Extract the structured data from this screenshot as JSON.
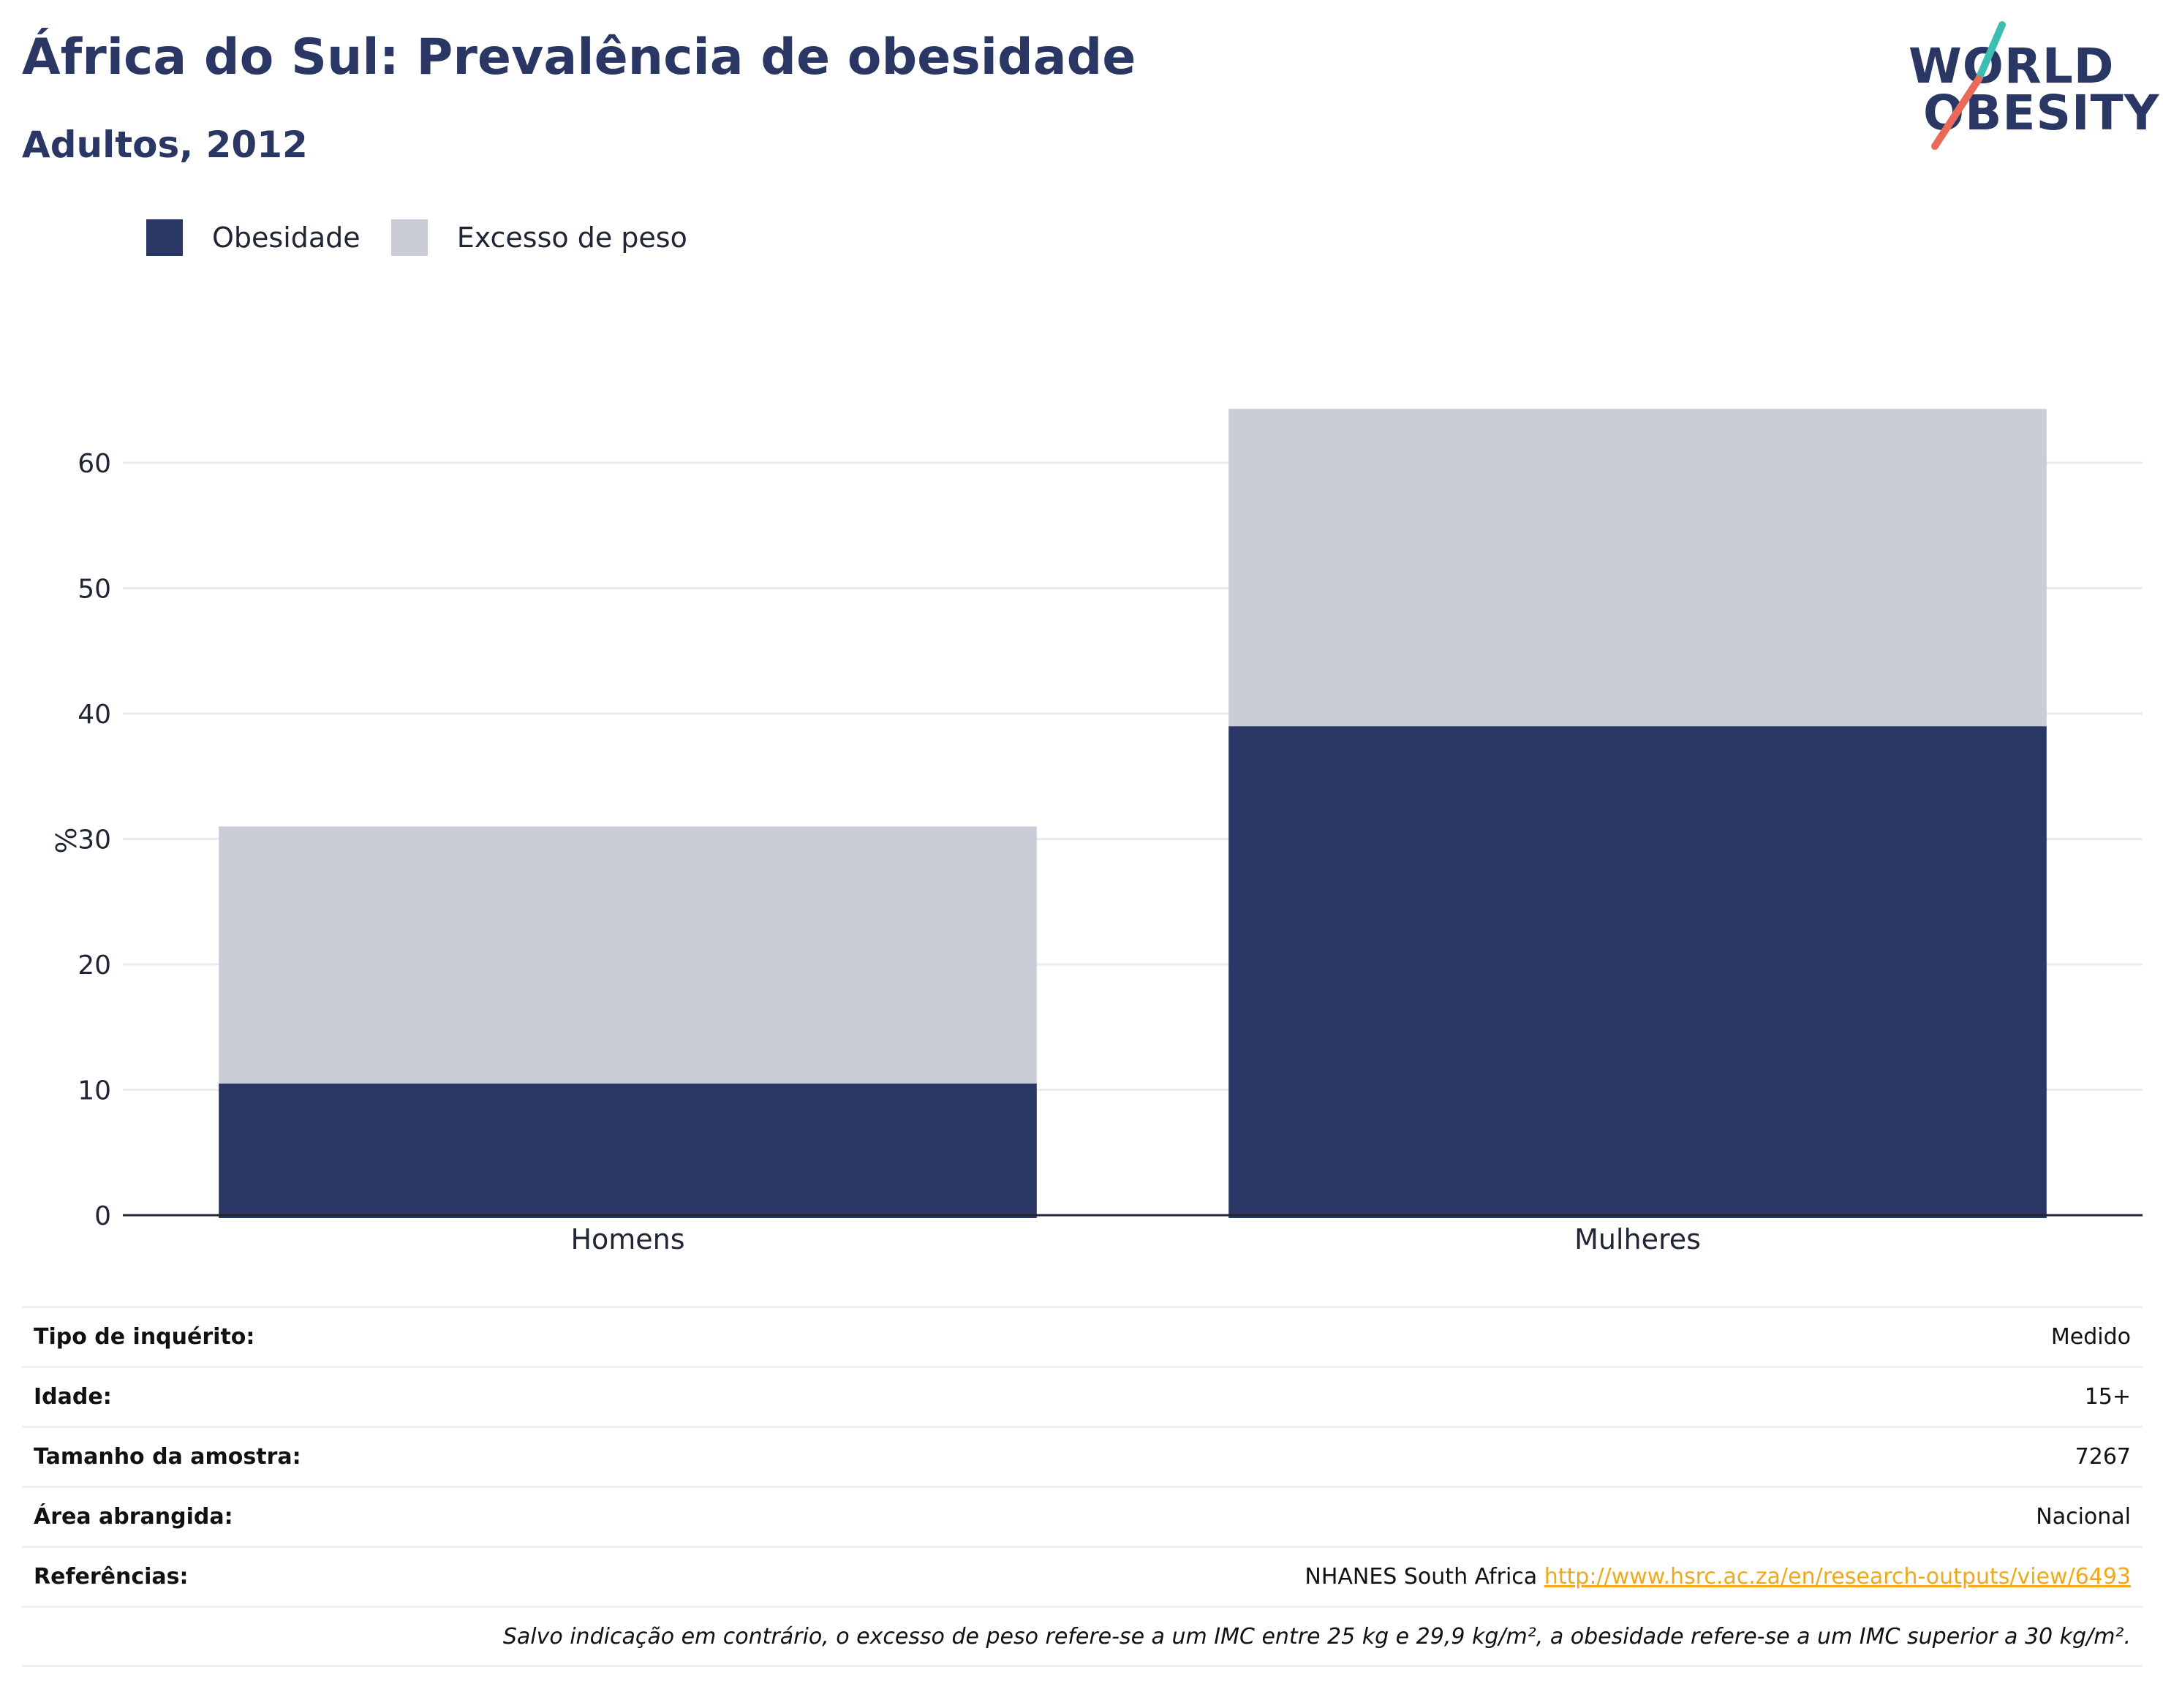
{
  "header": {
    "title": "África do Sul: Prevalência de obesidade",
    "subtitle": "Adultos, 2012"
  },
  "logo": {
    "line1": "WORLD",
    "line2": "OBESITY"
  },
  "colors": {
    "obesity": "#2a3764",
    "overweight": "#cacdd8",
    "accent_teal": "#3cbfb2",
    "accent_coral": "#ea6a5a",
    "link": "#f0a81c"
  },
  "legend": {
    "items": [
      {
        "label": "Obesidade"
      },
      {
        "label": "Excesso de peso"
      }
    ]
  },
  "chart_data": {
    "type": "bar",
    "stacked": true,
    "categories": [
      "Homens",
      "Mulheres"
    ],
    "series": [
      {
        "name": "Obesidade",
        "values": [
          10.5,
          39
        ]
      },
      {
        "name": "Excesso de peso",
        "values": [
          20.5,
          25.3
        ]
      }
    ],
    "xlabel": "",
    "ylabel": "%",
    "ylim": [
      0,
      70
    ],
    "yticks": [
      0,
      10,
      20,
      30,
      40,
      50,
      60
    ],
    "grid": true,
    "legend_position": "top-left"
  },
  "info": {
    "rows": [
      {
        "label": "Tipo de inquérito:",
        "value": "Medido"
      },
      {
        "label": "Idade:",
        "value": "15+"
      },
      {
        "label": "Tamanho da amostra:",
        "value": "7267"
      },
      {
        "label": "Área abrangida:",
        "value": "Nacional"
      }
    ],
    "references_label": "Referências:",
    "references_text": "NHANES South Africa",
    "references_link": "http://www.hsrc.ac.za/en/research-outputs/view/6493",
    "note": "Salvo indicação em contrário, o excesso de peso refere-se a um IMC entre 25 kg e 29,9 kg/m², a obesidade refere-se a um IMC superior a 30 kg/m²."
  }
}
